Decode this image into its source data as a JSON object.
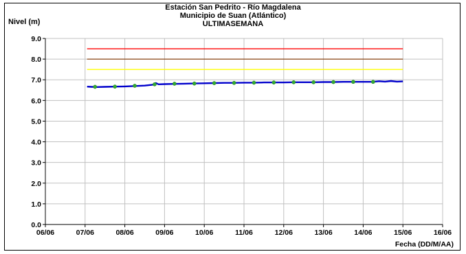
{
  "chart_data": {
    "type": "line",
    "title": "Estación San Pedrito - Río Magdalena",
    "subtitle": "Municipio de Suan (Atlántico)",
    "subtitle2": "ULTIMASEMANA",
    "ylabel": "Nivel (m)",
    "xlabel": "Fecha (DD/M/AA)",
    "ylim": [
      0,
      9
    ],
    "yticks": [
      "0.0",
      "1.0",
      "2.0",
      "3.0",
      "4.0",
      "5.0",
      "6.0",
      "7.0",
      "8.0",
      "9.0"
    ],
    "xticks": [
      "06/06",
      "07/06",
      "08/06",
      "09/06",
      "10/06",
      "11/06",
      "12/06",
      "13/06",
      "14/06",
      "15/06",
      "16/06"
    ],
    "xlim": [
      0,
      10
    ],
    "grid": true,
    "thresholds": [
      {
        "value": 8.5,
        "color": "#ff0000"
      },
      {
        "value": 8.0,
        "color": "#8b4513"
      },
      {
        "value": 7.5,
        "color": "#ffff00"
      }
    ],
    "series": [
      {
        "color": "#0000cc",
        "x": [
          1.05,
          1.15,
          1.3,
          1.5,
          1.75,
          2.0,
          2.25,
          2.5,
          2.7,
          2.78,
          2.85,
          3.0,
          3.25,
          3.5,
          3.75,
          4.0,
          4.25,
          4.5,
          4.75,
          5.0,
          5.25,
          5.5,
          5.75,
          6.0,
          6.25,
          6.5,
          6.75,
          7.0,
          7.25,
          7.5,
          7.75,
          8.0,
          8.25,
          8.4,
          8.55,
          8.7,
          8.85,
          9.0
        ],
        "y": [
          6.67,
          6.66,
          6.65,
          6.66,
          6.67,
          6.68,
          6.7,
          6.72,
          6.76,
          6.84,
          6.78,
          6.79,
          6.8,
          6.81,
          6.82,
          6.83,
          6.84,
          6.85,
          6.85,
          6.86,
          6.86,
          6.87,
          6.87,
          6.87,
          6.88,
          6.88,
          6.88,
          6.89,
          6.89,
          6.9,
          6.9,
          6.9,
          6.9,
          6.93,
          6.91,
          6.94,
          6.91,
          6.92
        ]
      }
    ],
    "markers": {
      "color": "#33aa33",
      "x": [
        1.25,
        1.75,
        2.25,
        2.75,
        3.25,
        3.75,
        4.25,
        4.75,
        5.25,
        5.75,
        6.25,
        6.75,
        7.25,
        7.75,
        8.25
      ],
      "y": [
        6.66,
        6.67,
        6.71,
        6.78,
        6.81,
        6.82,
        6.84,
        6.85,
        6.86,
        6.87,
        6.88,
        6.88,
        6.89,
        6.9,
        6.9
      ]
    }
  }
}
